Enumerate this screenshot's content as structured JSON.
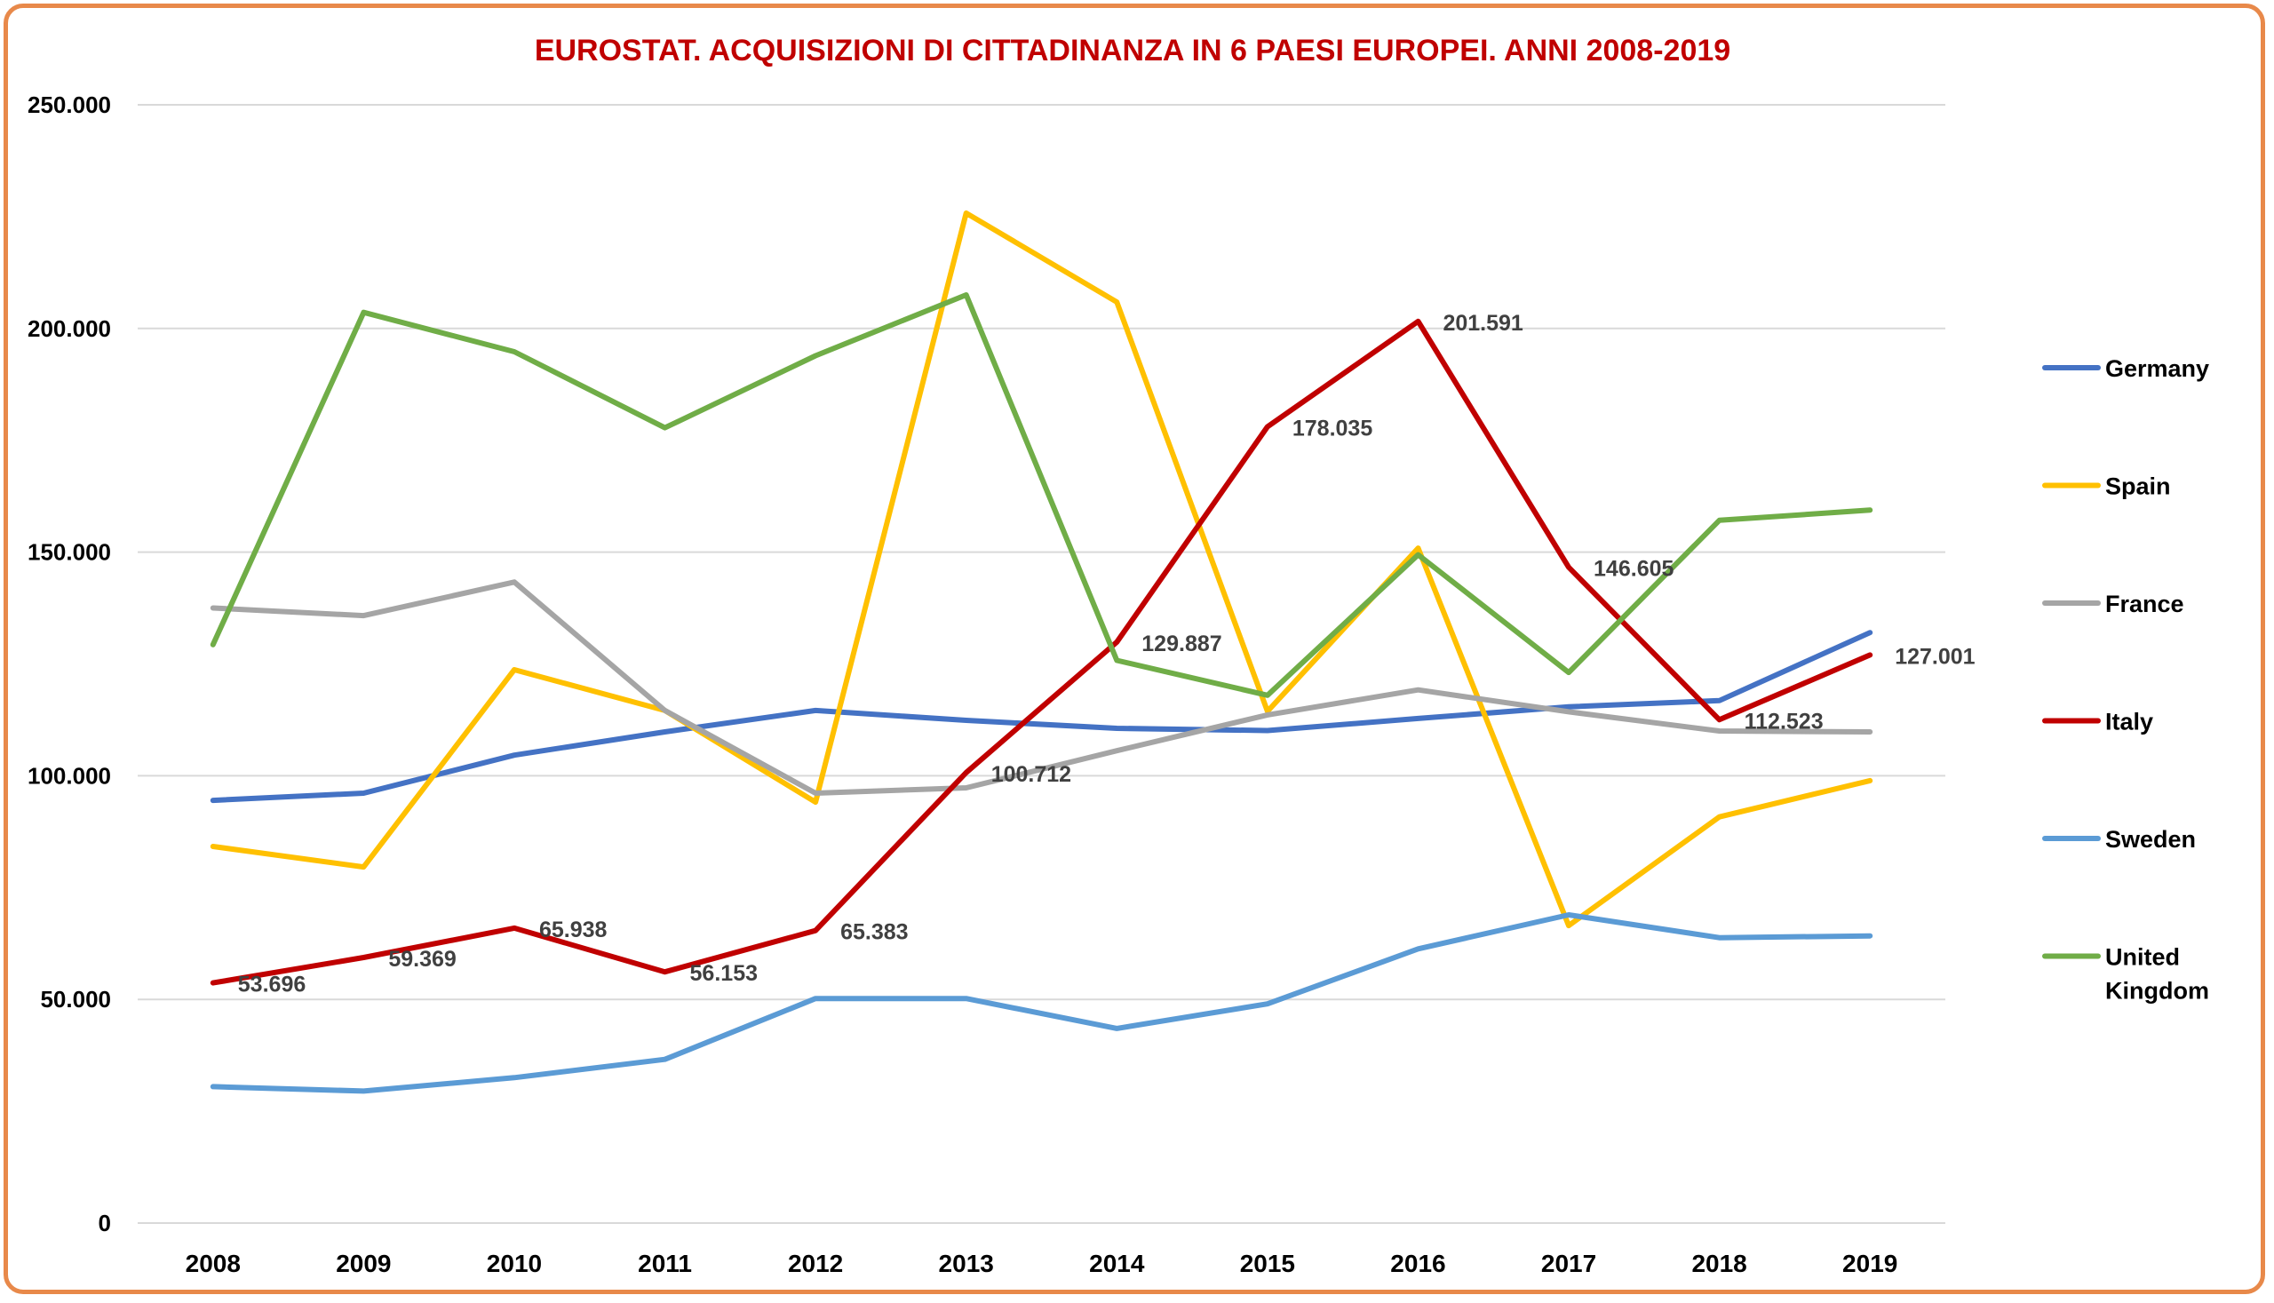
{
  "chart_data": {
    "type": "line",
    "title": "EUROSTAT. ACQUISIZIONI DI CITTADINANZA IN 6 PAESI EUROPEI. ANNI 2008-2019",
    "xlabel": "",
    "ylabel": "",
    "categories": [
      "2008",
      "2009",
      "2010",
      "2011",
      "2012",
      "2013",
      "2014",
      "2015",
      "2016",
      "2017",
      "2018",
      "2019"
    ],
    "ylim": [
      0,
      250000
    ],
    "y_ticks": [
      0,
      50000,
      100000,
      150000,
      200000,
      250000
    ],
    "y_tick_labels": [
      "0",
      "50.000",
      "100.000",
      "150.000",
      "200.000",
      "250.000"
    ],
    "grid": true,
    "legend_position": "right",
    "series": [
      {
        "name": "Germany",
        "color": "#4472c4",
        "values": [
          94500,
          96100,
          104600,
          109800,
          114600,
          112400,
          110600,
          110100,
          112800,
          115400,
          116800,
          132000
        ]
      },
      {
        "name": "Spain",
        "color": "#ffc000",
        "values": [
          84200,
          79600,
          123700,
          114600,
          94100,
          225800,
          205900,
          114400,
          150900,
          66500,
          90800,
          98900
        ]
      },
      {
        "name": "France",
        "color": "#a5a5a5",
        "values": [
          137500,
          135800,
          143300,
          114600,
          96100,
          97300,
          105600,
          113600,
          119200,
          114300,
          110000,
          109800
        ]
      },
      {
        "name": "Italy",
        "color": "#c00000",
        "values": [
          53696,
          59369,
          65938,
          56153,
          65383,
          100712,
          129887,
          178035,
          201591,
          146605,
          112523,
          127001
        ],
        "labels": [
          "53.696",
          "59.369",
          "65.938",
          "56.153",
          "65.383",
          "100.712",
          "129.887",
          "178.035",
          "201.591",
          "146.605",
          "112.523",
          "127.001"
        ]
      },
      {
        "name": "Sweden",
        "color": "#5b9bd5",
        "values": [
          30500,
          29500,
          32500,
          36600,
          50200,
          50200,
          43500,
          49000,
          61300,
          68900,
          63800,
          64200
        ]
      },
      {
        "name": "United Kingdom",
        "color": "#70ad47",
        "values": [
          129300,
          203600,
          194800,
          177800,
          193900,
          207500,
          125800,
          118000,
          149400,
          123100,
          157100,
          159400
        ]
      }
    ]
  }
}
